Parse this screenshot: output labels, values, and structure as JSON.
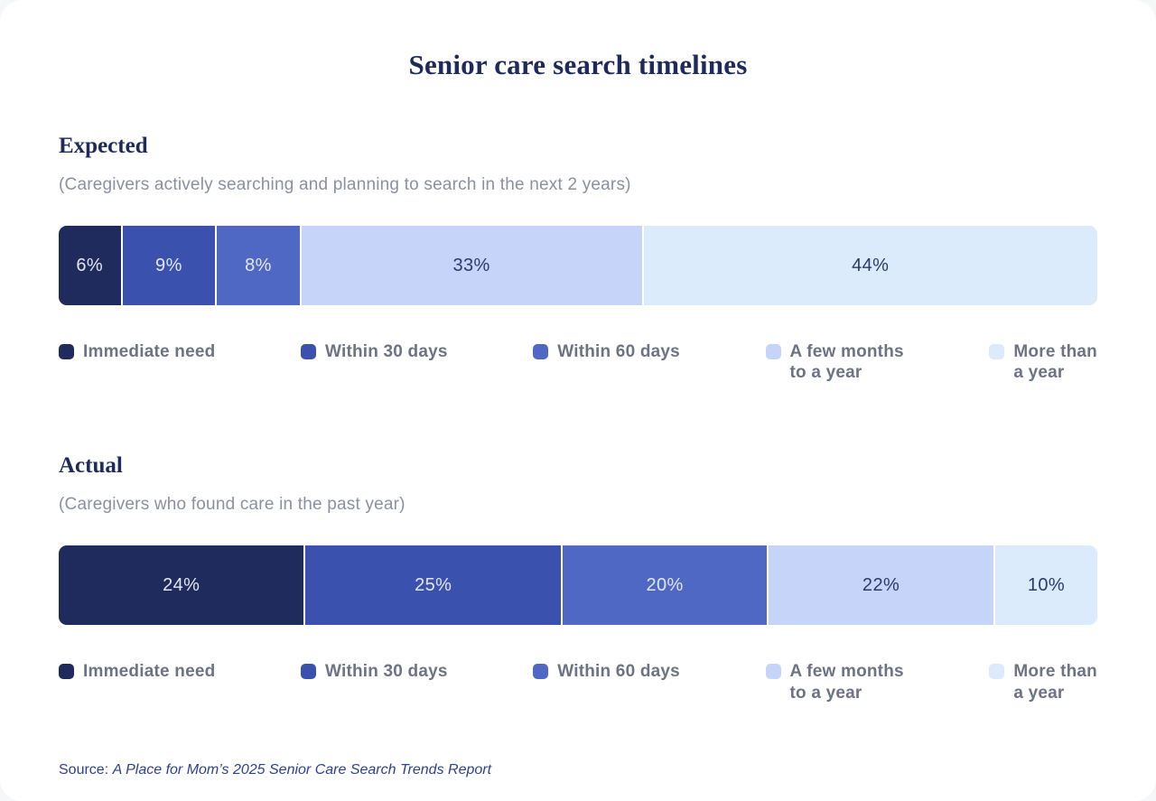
{
  "page": {
    "title": "Senior care search timelines",
    "source_prefix": "Source:",
    "source_citation": "A Place for Mom’s 2025 Senior Care Search Trends Report"
  },
  "colors": {
    "heading_navy": "#1e2a5c",
    "subtitle_gray": "#8b90a0",
    "legend_text_gray": "#6d7383",
    "source_blue": "#2e4191",
    "card_background": "#ffffff"
  },
  "legend": [
    {
      "key": "immediate-need",
      "label": "Immediate need",
      "display": "Immediate need",
      "color": "#1f2a5d",
      "value_text": "#e3e6f0"
    },
    {
      "key": "within-30-days",
      "label": "Within 30 days",
      "display": "Within 30 days",
      "color": "#3a51ae",
      "value_text": "#e3e6f0"
    },
    {
      "key": "within-60-days",
      "label": "Within 60 days",
      "display": "Within 60 days",
      "color": "#4f68c3",
      "value_text": "#e3e6f0"
    },
    {
      "key": "few-months-to-year",
      "label": "A few months to a year",
      "display": "A few months\nto a year",
      "color": "#c7d4fa",
      "value_text": "#2b3a66"
    },
    {
      "key": "more-than-year",
      "label": "More than a year",
      "display": "More than\na year",
      "color": "#dcebfb",
      "value_text": "#2b3a66"
    }
  ],
  "chart_data": [
    {
      "type": "bar",
      "orientation": "horizontal-stacked",
      "title": "Expected",
      "subtitle": "(Caregivers actively searching and planning to search in the next 2 years)",
      "categories": [
        "Immediate need",
        "Within 30 days",
        "Within 60 days",
        "A few months to a year",
        "More than a year"
      ],
      "values": [
        6,
        9,
        8,
        33,
        44
      ],
      "unit": "%",
      "xlim": [
        0,
        100
      ],
      "legend_position": "bottom"
    },
    {
      "type": "bar",
      "orientation": "horizontal-stacked",
      "title": "Actual",
      "subtitle": "(Caregivers who found care in the past year)",
      "categories": [
        "Immediate need",
        "Within 30 days",
        "Within 60 days",
        "A few months to a year",
        "More than a year"
      ],
      "values": [
        24,
        25,
        20,
        22,
        10
      ],
      "unit": "%",
      "xlim": [
        0,
        100
      ],
      "legend_position": "bottom"
    }
  ]
}
